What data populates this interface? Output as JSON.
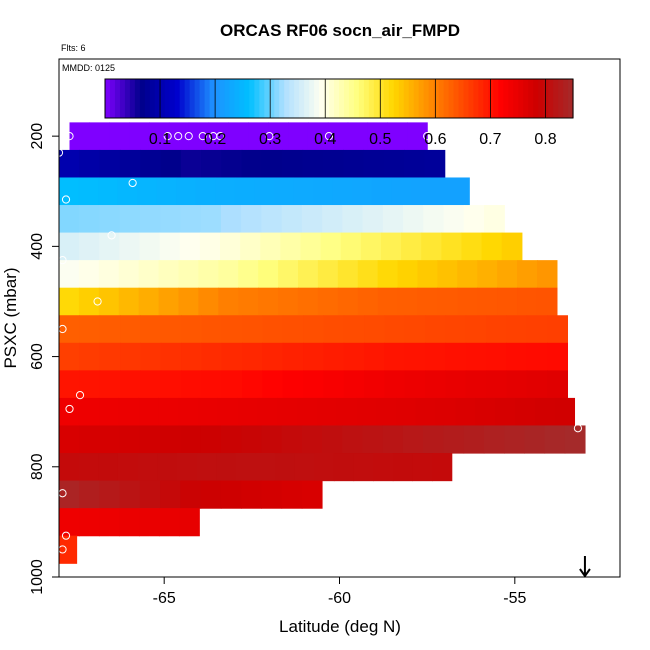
{
  "chart_data": {
    "type": "heatmap",
    "title": "ORCAS RF06 socn_air_FMPD",
    "notes": {
      "flights": "Flts: 6",
      "date": "MMDD: 0125"
    },
    "xlabel": "Latitude (deg N)",
    "ylabel": "PSXC (mbar)",
    "xlim": [
      -68,
      -52
    ],
    "ylim": [
      1000,
      60
    ],
    "y_reversed": true,
    "xticks": [
      -65,
      -60,
      -55
    ],
    "yticks": [
      200,
      400,
      600,
      800,
      1000
    ],
    "colorbar": {
      "range": [
        0,
        0.85
      ],
      "ticks": [
        0.1,
        0.2,
        0.3,
        0.4,
        0.5,
        0.6,
        0.7,
        0.8
      ],
      "tick_labels": [
        "0.1",
        "0.2",
        "0.3",
        "0.4",
        "0.5",
        "0.6",
        "0.7",
        "0.8"
      ],
      "colors": [
        "#7f00ff",
        "#00008b",
        "#0000cd",
        "#1e90ff",
        "#00bfff",
        "#b0e0ff",
        "#fffff0",
        "#ffff80",
        "#ffd700",
        "#ff8c00",
        "#ff4500",
        "#ff0000",
        "#cd0000",
        "#a52a2a"
      ]
    },
    "rows": [
      {
        "p_top": 175,
        "p_bot": 225,
        "lat_min": -67.7,
        "lat_max": -57.5,
        "v": [
          0.0,
          0.0,
          0.0
        ]
      },
      {
        "p_top": 225,
        "p_bot": 275,
        "lat_min": -68.0,
        "lat_max": -57.0,
        "v": [
          0.1,
          0.06,
          0.07,
          0.08
        ]
      },
      {
        "p_top": 275,
        "p_bot": 325,
        "lat_min": -68.0,
        "lat_max": -56.3,
        "v": [
          0.26,
          0.24,
          0.23,
          0.22
        ]
      },
      {
        "p_top": 325,
        "p_bot": 375,
        "lat_min": -68.0,
        "lat_max": -55.3,
        "v": [
          0.31,
          0.32,
          0.36,
          0.4
        ]
      },
      {
        "p_top": 375,
        "p_bot": 425,
        "lat_min": -68.0,
        "lat_max": -54.8,
        "v": [
          0.36,
          0.4,
          0.47,
          0.53
        ]
      },
      {
        "p_top": 425,
        "p_bot": 475,
        "lat_min": -68.0,
        "lat_max": -53.8,
        "v": [
          0.39,
          0.44,
          0.52,
          0.58
        ]
      },
      {
        "p_top": 475,
        "p_bot": 525,
        "lat_min": -68.0,
        "lat_max": -53.8,
        "v": [
          0.52,
          0.6,
          0.63,
          0.64
        ]
      },
      {
        "p_top": 525,
        "p_bot": 575,
        "lat_min": -68.0,
        "lat_max": -53.5,
        "v": [
          0.63,
          0.64,
          0.65,
          0.66
        ]
      },
      {
        "p_top": 575,
        "p_bot": 625,
        "lat_min": -68.0,
        "lat_max": -53.5,
        "v": [
          0.66,
          0.68,
          0.7,
          0.71
        ]
      },
      {
        "p_top": 625,
        "p_bot": 675,
        "lat_min": -68.0,
        "lat_max": -53.5,
        "v": [
          0.7,
          0.71,
          0.74,
          0.76
        ]
      },
      {
        "p_top": 675,
        "p_bot": 725,
        "lat_min": -68.0,
        "lat_max": -53.3,
        "v": [
          0.74,
          0.75,
          0.76,
          0.78
        ]
      },
      {
        "p_top": 725,
        "p_bot": 775,
        "lat_min": -68.0,
        "lat_max": -53.0,
        "v": [
          0.77,
          0.79,
          0.82,
          0.85
        ]
      },
      {
        "p_top": 775,
        "p_bot": 825,
        "lat_min": -68.0,
        "lat_max": -56.8,
        "v": [
          0.8,
          0.81,
          0.8
        ]
      },
      {
        "p_top": 825,
        "p_bot": 875,
        "lat_min": -68.0,
        "lat_max": -60.5,
        "v": [
          0.84,
          0.79,
          0.77
        ]
      },
      {
        "p_top": 875,
        "p_bot": 925,
        "lat_min": -68.0,
        "lat_max": -64.0,
        "v": [
          0.74,
          0.75
        ]
      },
      {
        "p_top": 925,
        "p_bot": 975,
        "lat_min": -68.0,
        "lat_max": -67.5,
        "v": [
          0.68
        ]
      }
    ],
    "points": [
      {
        "lat": -67.7,
        "p": 200
      },
      {
        "lat": -64.9,
        "p": 200
      },
      {
        "lat": -64.6,
        "p": 200
      },
      {
        "lat": -64.3,
        "p": 200
      },
      {
        "lat": -63.9,
        "p": 200
      },
      {
        "lat": -63.6,
        "p": 200
      },
      {
        "lat": -63.4,
        "p": 200
      },
      {
        "lat": -62.0,
        "p": 200
      },
      {
        "lat": -60.3,
        "p": 200
      },
      {
        "lat": -57.5,
        "p": 200
      },
      {
        "lat": -68.0,
        "p": 230
      },
      {
        "lat": -65.9,
        "p": 285
      },
      {
        "lat": -67.8,
        "p": 315
      },
      {
        "lat": -66.5,
        "p": 380
      },
      {
        "lat": -67.9,
        "p": 425
      },
      {
        "lat": -53.6,
        "p": 440
      },
      {
        "lat": -66.9,
        "p": 500
      },
      {
        "lat": -67.9,
        "p": 550
      },
      {
        "lat": -67.7,
        "p": 695
      },
      {
        "lat": -67.4,
        "p": 670
      },
      {
        "lat": -53.2,
        "p": 730
      },
      {
        "lat": -67.9,
        "p": 848
      },
      {
        "lat": -67.8,
        "p": 925
      },
      {
        "lat": -67.9,
        "p": 950
      }
    ],
    "arrow": {
      "lat": -53.0,
      "direction": "down"
    }
  }
}
